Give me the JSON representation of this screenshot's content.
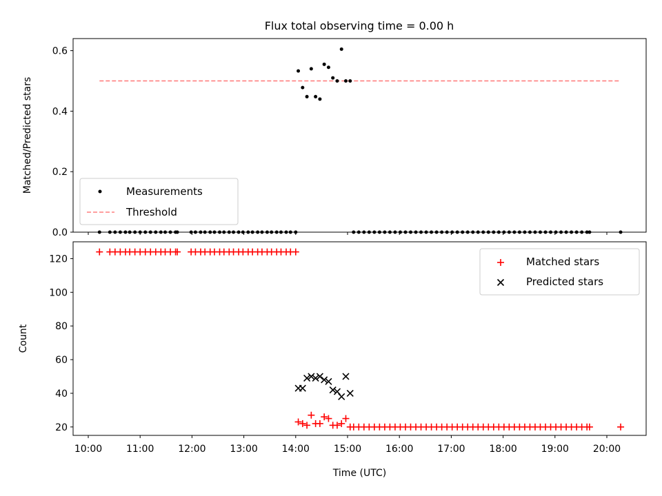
{
  "title": "Flux total observing time = 0.00 h",
  "colors": {
    "measurements": "#000000",
    "threshold": "#ff7f7f",
    "matched": "#ff0000",
    "predicted": "#000000"
  },
  "chart_data": [
    {
      "type": "scatter",
      "panel": "top",
      "ylabel": "Matched/Predicted stars",
      "ylim": [
        0,
        0.64
      ],
      "yticks": [
        0.0,
        0.2,
        0.4,
        0.6
      ],
      "ytick_labels": [
        "0.0",
        "0.2",
        "0.4",
        "0.6"
      ],
      "legend": {
        "position": "lower-left",
        "entries": [
          "Measurements",
          "Threshold"
        ]
      },
      "series": [
        {
          "name": "Measurements",
          "marker": "dot",
          "points": [
            [
              "10:13",
              0
            ],
            [
              "10:25",
              0
            ],
            [
              "10:31",
              0
            ],
            [
              "10:37",
              0
            ],
            [
              "10:43",
              0
            ],
            [
              "10:48",
              0
            ],
            [
              "10:54",
              0
            ],
            [
              "11:00",
              0
            ],
            [
              "11:06",
              0
            ],
            [
              "11:12",
              0
            ],
            [
              "11:18",
              0
            ],
            [
              "11:24",
              0
            ],
            [
              "11:29",
              0
            ],
            [
              "11:35",
              0
            ],
            [
              "11:41",
              0
            ],
            [
              "11:43",
              0
            ],
            [
              "11:59",
              0
            ],
            [
              "12:04",
              0
            ],
            [
              "12:10",
              0
            ],
            [
              "12:15",
              0
            ],
            [
              "12:21",
              0
            ],
            [
              "12:26",
              0
            ],
            [
              "12:32",
              0
            ],
            [
              "12:37",
              0
            ],
            [
              "12:43",
              0
            ],
            [
              "12:48",
              0
            ],
            [
              "12:54",
              0
            ],
            [
              "12:59",
              0
            ],
            [
              "13:05",
              0
            ],
            [
              "13:10",
              0
            ],
            [
              "13:16",
              0
            ],
            [
              "13:21",
              0
            ],
            [
              "13:27",
              0
            ],
            [
              "13:32",
              0
            ],
            [
              "13:38",
              0
            ],
            [
              "13:43",
              0
            ],
            [
              "13:49",
              0
            ],
            [
              "13:54",
              0
            ],
            [
              "14:00",
              0
            ],
            [
              "14:03",
              0.533
            ],
            [
              "14:08",
              0.478
            ],
            [
              "14:13",
              0.448
            ],
            [
              "14:18",
              0.54
            ],
            [
              "14:23",
              0.448
            ],
            [
              "14:28",
              0.44
            ],
            [
              "14:33",
              0.555
            ],
            [
              "14:38",
              0.545
            ],
            [
              "14:43",
              0.51
            ],
            [
              "14:48",
              0.5
            ],
            [
              "14:53",
              0.605
            ],
            [
              "14:58",
              0.5
            ],
            [
              "15:03",
              0.5
            ],
            [
              "15:07",
              0
            ],
            [
              "15:13",
              0
            ],
            [
              "15:19",
              0
            ],
            [
              "15:25",
              0
            ],
            [
              "15:31",
              0
            ],
            [
              "15:37",
              0
            ],
            [
              "15:43",
              0
            ],
            [
              "15:49",
              0
            ],
            [
              "15:55",
              0
            ],
            [
              "16:01",
              0
            ],
            [
              "16:07",
              0
            ],
            [
              "16:13",
              0
            ],
            [
              "16:19",
              0
            ],
            [
              "16:25",
              0
            ],
            [
              "16:31",
              0
            ],
            [
              "16:37",
              0
            ],
            [
              "16:43",
              0
            ],
            [
              "16:49",
              0
            ],
            [
              "16:55",
              0
            ],
            [
              "17:01",
              0
            ],
            [
              "17:07",
              0
            ],
            [
              "17:13",
              0
            ],
            [
              "17:19",
              0
            ],
            [
              "17:25",
              0
            ],
            [
              "17:31",
              0
            ],
            [
              "17:37",
              0
            ],
            [
              "17:43",
              0
            ],
            [
              "17:49",
              0
            ],
            [
              "17:55",
              0
            ],
            [
              "18:01",
              0
            ],
            [
              "18:07",
              0
            ],
            [
              "18:13",
              0
            ],
            [
              "18:19",
              0
            ],
            [
              "18:25",
              0
            ],
            [
              "18:31",
              0
            ],
            [
              "18:37",
              0
            ],
            [
              "18:43",
              0
            ],
            [
              "18:49",
              0
            ],
            [
              "18:55",
              0
            ],
            [
              "19:01",
              0
            ],
            [
              "19:07",
              0
            ],
            [
              "19:13",
              0
            ],
            [
              "19:19",
              0
            ],
            [
              "19:25",
              0
            ],
            [
              "19:31",
              0
            ],
            [
              "19:37",
              0
            ],
            [
              "19:40",
              0
            ],
            [
              "20:16",
              0
            ]
          ]
        },
        {
          "name": "Threshold",
          "line": "dashed",
          "points": [
            [
              "10:13",
              0.5
            ],
            [
              "20:16",
              0.5
            ]
          ]
        }
      ]
    },
    {
      "type": "scatter",
      "panel": "bottom",
      "ylabel": "Count",
      "xlabel": "Time (UTC)",
      "ylim": [
        15,
        130
      ],
      "yticks": [
        20,
        40,
        60,
        80,
        100,
        120
      ],
      "ytick_labels": [
        "20",
        "40",
        "60",
        "80",
        "100",
        "120"
      ],
      "xtick_labels": [
        "10:00",
        "11:00",
        "12:00",
        "13:00",
        "14:00",
        "15:00",
        "16:00",
        "17:00",
        "18:00",
        "19:00",
        "20:00"
      ],
      "legend": {
        "position": "upper-right",
        "entries": [
          "Matched stars",
          "Predicted stars"
        ]
      },
      "series": [
        {
          "name": "Matched stars",
          "marker": "plus",
          "points": [
            [
              "10:13",
              124
            ],
            [
              "10:25",
              124
            ],
            [
              "10:31",
              124
            ],
            [
              "10:37",
              124
            ],
            [
              "10:43",
              124
            ],
            [
              "10:48",
              124
            ],
            [
              "10:54",
              124
            ],
            [
              "11:00",
              124
            ],
            [
              "11:06",
              124
            ],
            [
              "11:12",
              124
            ],
            [
              "11:18",
              124
            ],
            [
              "11:24",
              124
            ],
            [
              "11:29",
              124
            ],
            [
              "11:35",
              124
            ],
            [
              "11:41",
              124
            ],
            [
              "11:43",
              124
            ],
            [
              "11:59",
              124
            ],
            [
              "12:04",
              124
            ],
            [
              "12:10",
              124
            ],
            [
              "12:15",
              124
            ],
            [
              "12:21",
              124
            ],
            [
              "12:26",
              124
            ],
            [
              "12:32",
              124
            ],
            [
              "12:37",
              124
            ],
            [
              "12:43",
              124
            ],
            [
              "12:48",
              124
            ],
            [
              "12:54",
              124
            ],
            [
              "12:59",
              124
            ],
            [
              "13:05",
              124
            ],
            [
              "13:10",
              124
            ],
            [
              "13:16",
              124
            ],
            [
              "13:21",
              124
            ],
            [
              "13:27",
              124
            ],
            [
              "13:32",
              124
            ],
            [
              "13:38",
              124
            ],
            [
              "13:43",
              124
            ],
            [
              "13:49",
              124
            ],
            [
              "13:54",
              124
            ],
            [
              "14:00",
              124
            ],
            [
              "14:03",
              23
            ],
            [
              "14:08",
              22
            ],
            [
              "14:13",
              21
            ],
            [
              "14:18",
              27
            ],
            [
              "14:23",
              22
            ],
            [
              "14:28",
              22
            ],
            [
              "14:33",
              26
            ],
            [
              "14:38",
              25
            ],
            [
              "14:43",
              21
            ],
            [
              "14:48",
              21
            ],
            [
              "14:53",
              22
            ],
            [
              "14:58",
              25
            ],
            [
              "15:03",
              20
            ],
            [
              "15:07",
              20
            ],
            [
              "15:13",
              20
            ],
            [
              "15:19",
              20
            ],
            [
              "15:25",
              20
            ],
            [
              "15:31",
              20
            ],
            [
              "15:37",
              20
            ],
            [
              "15:43",
              20
            ],
            [
              "15:49",
              20
            ],
            [
              "15:55",
              20
            ],
            [
              "16:01",
              20
            ],
            [
              "16:07",
              20
            ],
            [
              "16:13",
              20
            ],
            [
              "16:19",
              20
            ],
            [
              "16:25",
              20
            ],
            [
              "16:31",
              20
            ],
            [
              "16:37",
              20
            ],
            [
              "16:43",
              20
            ],
            [
              "16:49",
              20
            ],
            [
              "16:55",
              20
            ],
            [
              "17:01",
              20
            ],
            [
              "17:07",
              20
            ],
            [
              "17:13",
              20
            ],
            [
              "17:19",
              20
            ],
            [
              "17:25",
              20
            ],
            [
              "17:31",
              20
            ],
            [
              "17:37",
              20
            ],
            [
              "17:43",
              20
            ],
            [
              "17:49",
              20
            ],
            [
              "17:55",
              20
            ],
            [
              "18:01",
              20
            ],
            [
              "18:07",
              20
            ],
            [
              "18:13",
              20
            ],
            [
              "18:19",
              20
            ],
            [
              "18:25",
              20
            ],
            [
              "18:31",
              20
            ],
            [
              "18:37",
              20
            ],
            [
              "18:43",
              20
            ],
            [
              "18:49",
              20
            ],
            [
              "18:55",
              20
            ],
            [
              "19:01",
              20
            ],
            [
              "19:07",
              20
            ],
            [
              "19:13",
              20
            ],
            [
              "19:19",
              20
            ],
            [
              "19:25",
              20
            ],
            [
              "19:31",
              20
            ],
            [
              "19:37",
              20
            ],
            [
              "19:40",
              20
            ],
            [
              "20:16",
              20
            ]
          ]
        },
        {
          "name": "Predicted stars",
          "marker": "x",
          "points": [
            [
              "14:03",
              43
            ],
            [
              "14:08",
              43
            ],
            [
              "14:13",
              49
            ],
            [
              "14:18",
              50
            ],
            [
              "14:23",
              49
            ],
            [
              "14:28",
              50
            ],
            [
              "14:33",
              48
            ],
            [
              "14:38",
              47
            ],
            [
              "14:43",
              42
            ],
            [
              "14:48",
              41
            ],
            [
              "14:53",
              38
            ],
            [
              "14:58",
              50
            ],
            [
              "15:03",
              40
            ]
          ]
        }
      ]
    }
  ]
}
